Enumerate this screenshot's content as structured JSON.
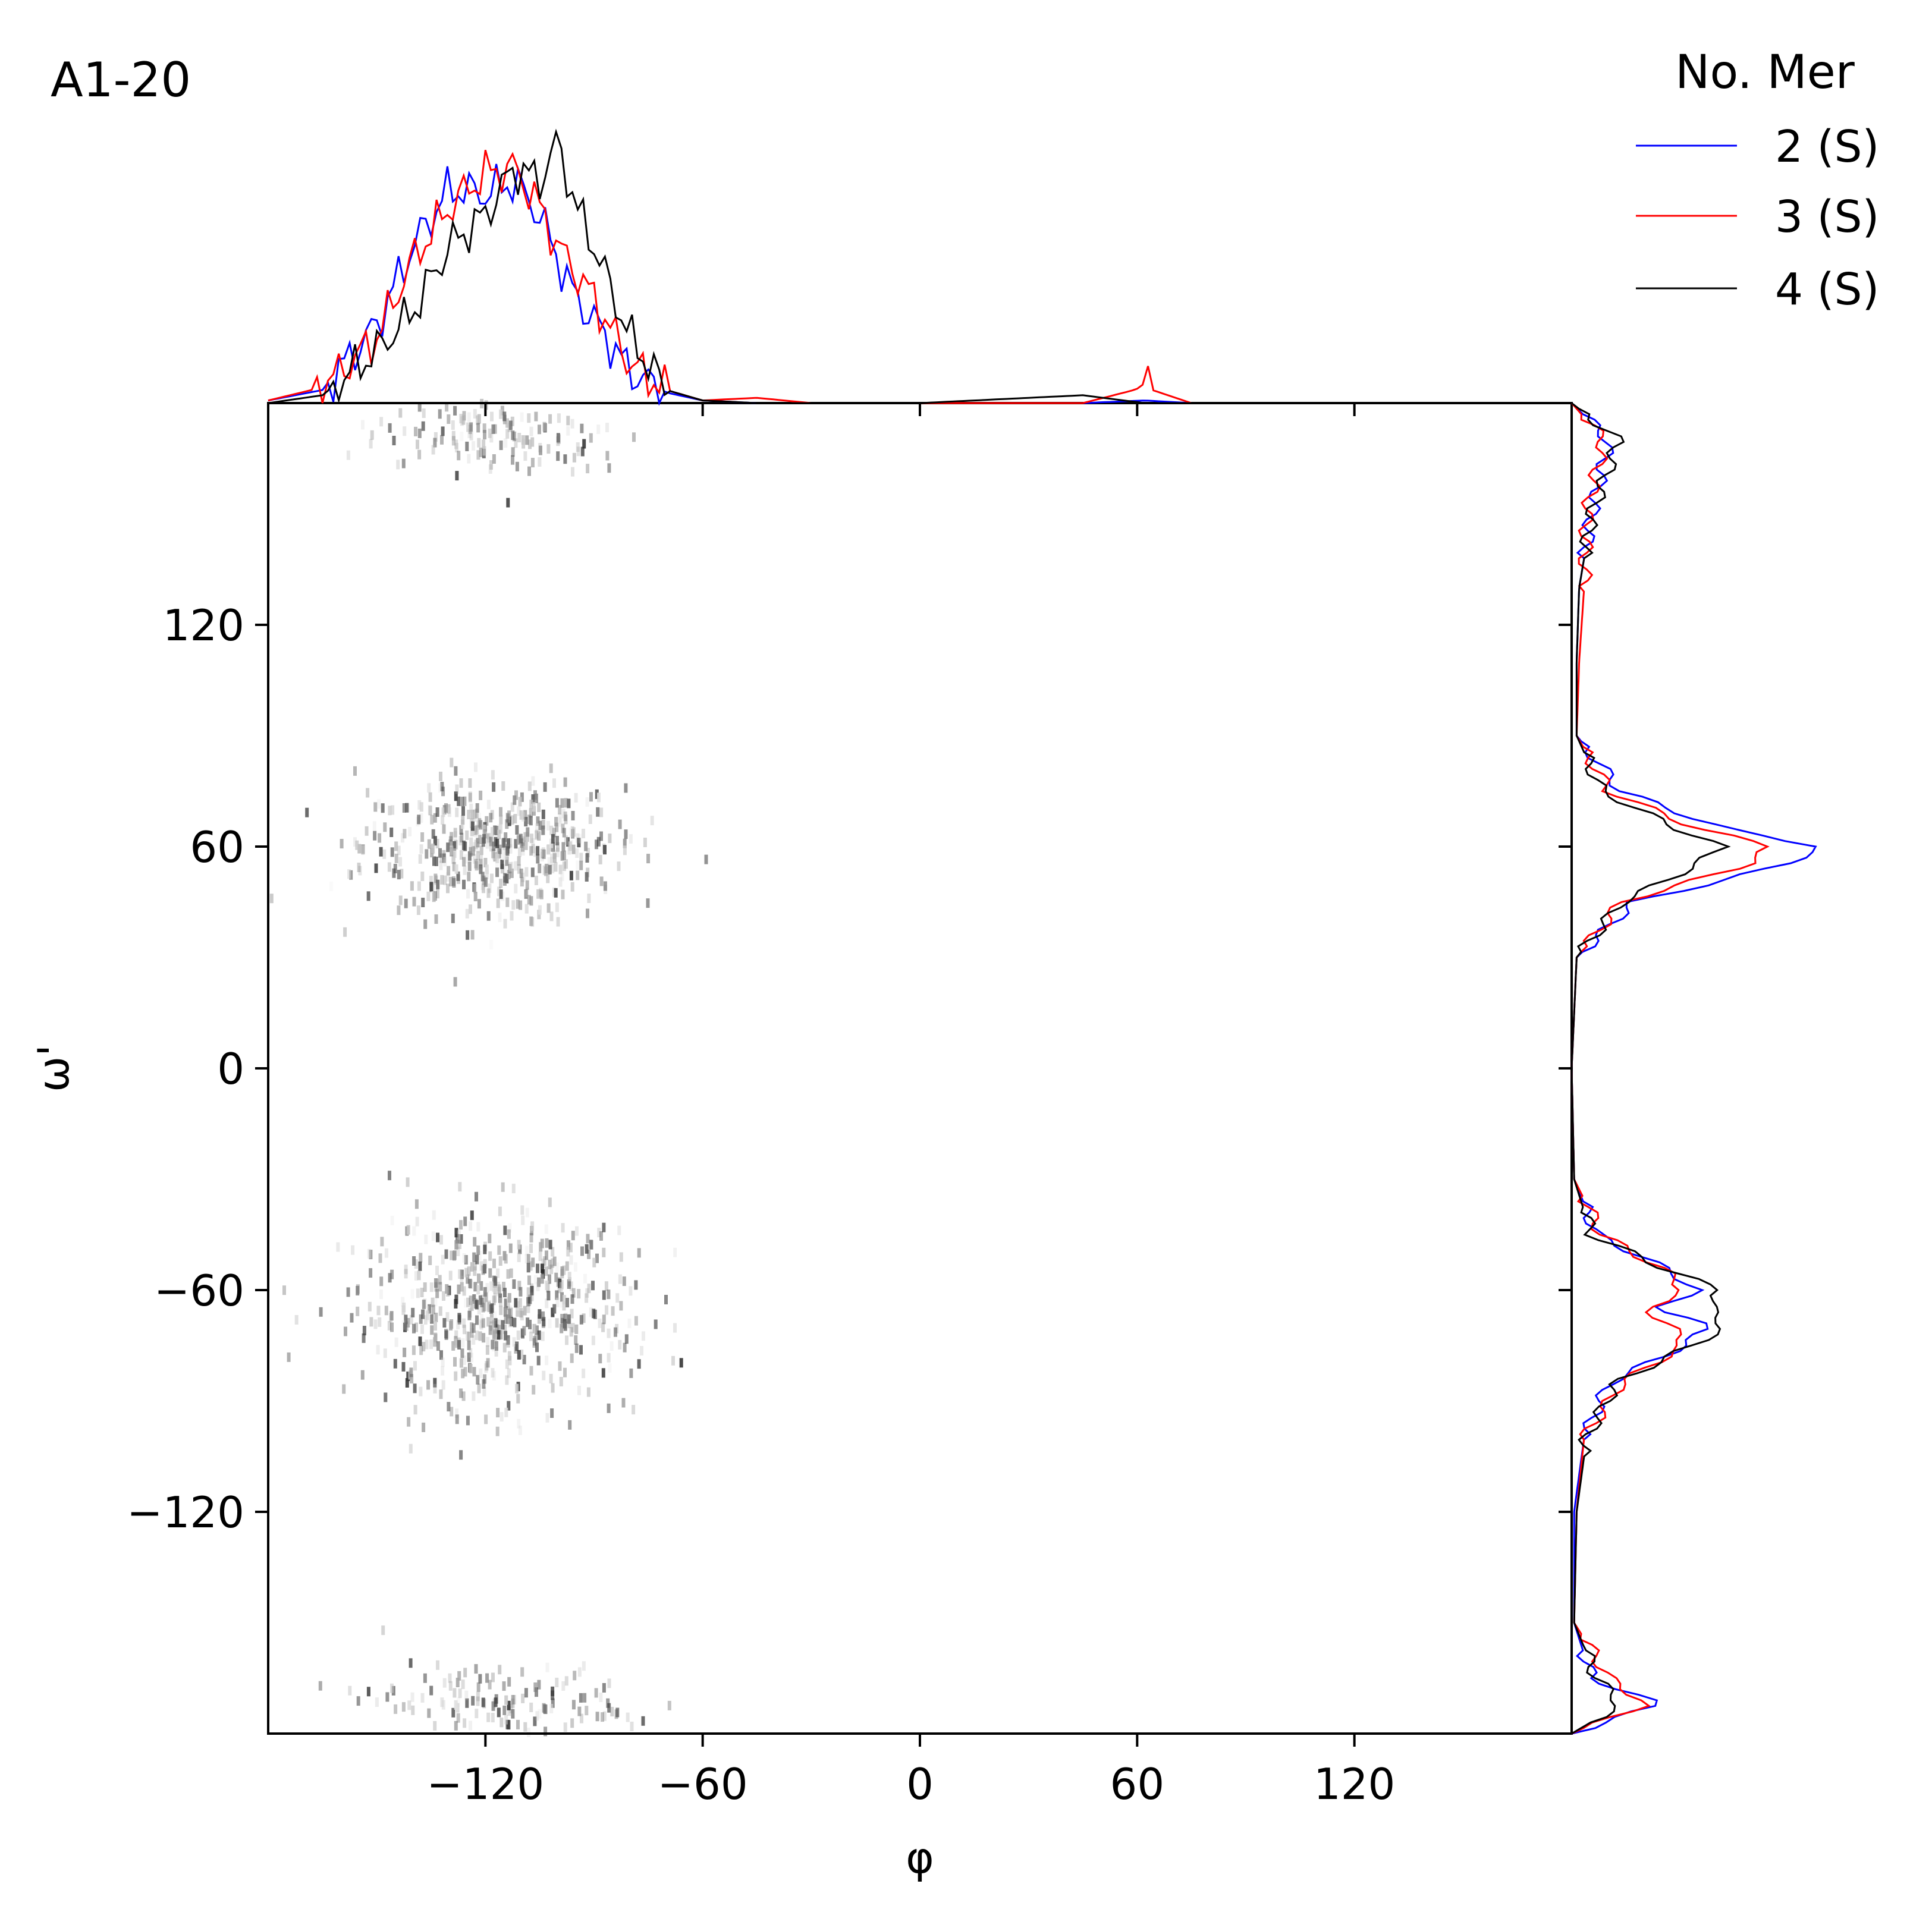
{
  "panel_label": "A1-20",
  "legend": {
    "title": "No. Mer",
    "entries": [
      {
        "label": "2 (S)",
        "color": "#0000ff"
      },
      {
        "label": "3 (S)",
        "color": "#ff0000"
      },
      {
        "label": "4 (S)",
        "color": "#000000"
      }
    ]
  },
  "chart_data": {
    "type": "heatmap",
    "xlabel": "φ",
    "ylabel": "ω'",
    "xlim": [
      -180,
      180
    ],
    "ylim": [
      -180,
      180
    ],
    "x_ticks": [
      -120,
      -60,
      0,
      60,
      120
    ],
    "y_ticks": [
      -120,
      -60,
      0,
      60,
      120
    ],
    "x_tick_labels": [
      "−120",
      "−60",
      "0",
      "60",
      "120"
    ],
    "y_tick_labels": [
      "−120",
      "−60",
      "0",
      "60",
      "120"
    ],
    "colormap": "Greys",
    "clusters": [
      {
        "phi_center": -118,
        "phi_spread": 30,
        "omega_center": 60,
        "omega_spread": 13,
        "count": 520
      },
      {
        "phi_center": -118,
        "phi_spread": 32,
        "omega_center": -65,
        "omega_spread": 18,
        "count": 620
      },
      {
        "phi_center": -115,
        "phi_spread": 28,
        "omega_center": 172,
        "omega_spread": 8,
        "count": 150
      },
      {
        "phi_center": -115,
        "phi_spread": 28,
        "omega_center": -172,
        "omega_spread": 8,
        "count": 140
      }
    ],
    "marginal_phi": {
      "x": [
        -180,
        -165,
        -150,
        -140,
        -130,
        -120,
        -112,
        -105,
        -100,
        -95,
        -90,
        -80,
        -70,
        -60,
        -45,
        -30,
        0,
        45,
        62,
        75,
        180
      ],
      "series": [
        {
          "name": "2 (S)",
          "color": "#0000ff",
          "values": [
            0.01,
            0.05,
            0.3,
            0.6,
            0.82,
            0.8,
            0.85,
            0.72,
            0.55,
            0.4,
            0.32,
            0.12,
            0.04,
            0.01,
            0.0,
            0.0,
            0.0,
            0.0,
            0.01,
            0.0,
            0.0
          ]
        },
        {
          "name": "3 (S)",
          "color": "#ff0000",
          "values": [
            0.01,
            0.06,
            0.25,
            0.55,
            0.75,
            0.88,
            0.9,
            0.75,
            0.6,
            0.5,
            0.4,
            0.15,
            0.05,
            0.01,
            0.02,
            0.0,
            0.0,
            0.0,
            0.06,
            0.0,
            0.0
          ]
        },
        {
          "name": "4 (S)",
          "color": "#000000",
          "values": [
            0.0,
            0.03,
            0.2,
            0.35,
            0.6,
            0.72,
            0.9,
            0.85,
            1.0,
            0.75,
            0.6,
            0.25,
            0.05,
            0.01,
            0.0,
            0.0,
            0.0,
            0.03,
            0.0,
            0.0,
            0.0
          ]
        }
      ]
    },
    "marginal_omega": {
      "y": [
        180,
        170,
        150,
        130,
        110,
        90,
        75,
        65,
        60,
        55,
        45,
        30,
        0,
        -30,
        -45,
        -55,
        -60,
        -65,
        -70,
        -75,
        -85,
        -100,
        -120,
        -150,
        -165,
        -172,
        -180
      ],
      "series": [
        {
          "name": "2 (S)",
          "color": "#0000ff",
          "values": [
            0.0,
            0.15,
            0.08,
            0.03,
            0.02,
            0.02,
            0.2,
            0.6,
            1.0,
            0.85,
            0.25,
            0.02,
            0.0,
            0.01,
            0.1,
            0.4,
            0.5,
            0.35,
            0.55,
            0.45,
            0.15,
            0.05,
            0.01,
            0.01,
            0.08,
            0.35,
            0.0
          ]
        },
        {
          "name": "3 (S)",
          "color": "#ff0000",
          "values": [
            0.0,
            0.13,
            0.06,
            0.05,
            0.03,
            0.02,
            0.15,
            0.5,
            0.8,
            0.7,
            0.2,
            0.02,
            0.0,
            0.01,
            0.12,
            0.38,
            0.45,
            0.3,
            0.4,
            0.45,
            0.2,
            0.05,
            0.02,
            0.01,
            0.15,
            0.3,
            0.0
          ]
        },
        {
          "name": "4 (S)",
          "color": "#000000",
          "values": [
            0.0,
            0.19,
            0.08,
            0.03,
            0.02,
            0.02,
            0.12,
            0.42,
            0.6,
            0.5,
            0.2,
            0.02,
            0.0,
            0.01,
            0.08,
            0.4,
            0.6,
            0.55,
            0.62,
            0.48,
            0.18,
            0.06,
            0.02,
            0.01,
            0.1,
            0.2,
            0.0
          ]
        }
      ]
    }
  }
}
